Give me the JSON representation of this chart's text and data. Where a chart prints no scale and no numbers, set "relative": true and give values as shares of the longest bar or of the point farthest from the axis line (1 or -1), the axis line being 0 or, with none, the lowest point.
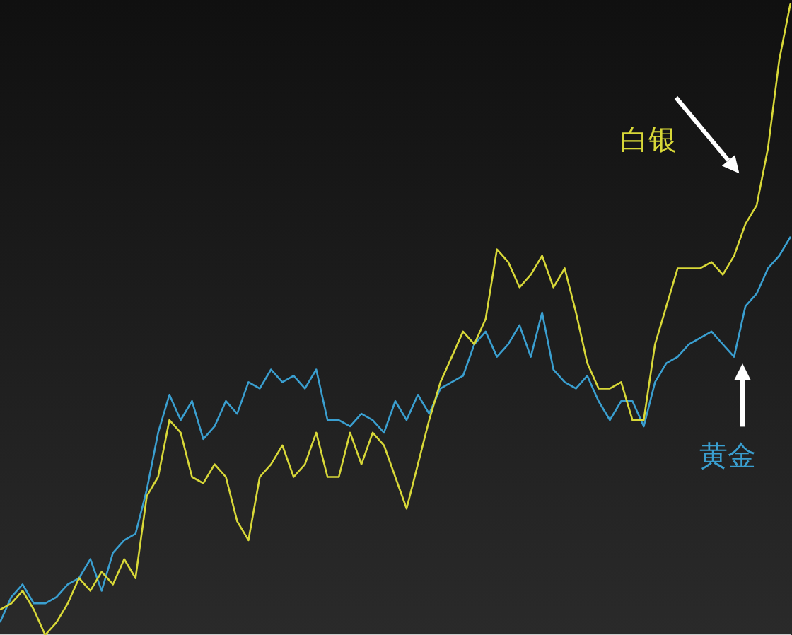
{
  "chart_data": {
    "type": "line",
    "relative": true,
    "legend": false,
    "marker": "none",
    "categories": [
      null,
      null,
      null,
      null,
      null,
      null,
      null,
      null,
      null,
      null,
      null,
      null,
      null,
      null,
      null,
      null,
      null,
      null,
      null,
      null,
      null,
      null,
      null,
      null,
      null,
      null,
      null,
      null,
      null,
      null,
      null,
      null,
      null,
      null,
      null,
      null,
      null,
      null,
      null,
      null,
      null,
      null,
      null,
      null,
      null,
      null,
      null,
      null,
      null,
      null,
      null,
      null,
      null,
      null,
      null,
      null,
      null,
      null,
      null,
      null,
      null,
      null,
      null,
      null,
      null,
      null,
      null,
      null,
      null,
      null,
      null
    ],
    "series": [
      {
        "name": "白银",
        "color": "#d8d838",
        "values": [
          0.04,
          0.05,
          0.07,
          0.04,
          0,
          0.02,
          0.05,
          0.09,
          0.07,
          0.1,
          0.08,
          0.12,
          0.09,
          0.22,
          0.25,
          0.34,
          0.32,
          0.25,
          0.24,
          0.27,
          0.25,
          0.18,
          0.15,
          0.25,
          0.27,
          0.3,
          0.25,
          0.27,
          0.32,
          0.25,
          0.25,
          0.32,
          0.27,
          0.32,
          0.3,
          0.25,
          0.2,
          0.27,
          0.34,
          0.4,
          0.44,
          0.48,
          0.46,
          0.5,
          0.61,
          0.59,
          0.55,
          0.57,
          0.6,
          0.55,
          0.58,
          0.51,
          0.43,
          0.39,
          0.39,
          0.4,
          0.34,
          0.34,
          0.46,
          0.52,
          0.58,
          0.58,
          0.58,
          0.59,
          0.57,
          0.6,
          0.65,
          0.68,
          0.77,
          0.91,
          1
        ]
      },
      {
        "name": "黄金",
        "color": "#3a9fd0",
        "values": [
          0.02,
          0.06,
          0.08,
          0.05,
          0.05,
          0.06,
          0.08,
          0.09,
          0.12,
          0.07,
          0.13,
          0.15,
          0.16,
          0.23,
          0.32,
          0.38,
          0.34,
          0.37,
          0.31,
          0.33,
          0.37,
          0.35,
          0.4,
          0.39,
          0.42,
          0.4,
          0.41,
          0.39,
          0.42,
          0.34,
          0.34,
          0.33,
          0.35,
          0.34,
          0.32,
          0.37,
          0.34,
          0.38,
          0.35,
          0.39,
          0.4,
          0.41,
          0.46,
          0.48,
          0.44,
          0.46,
          0.49,
          0.44,
          0.51,
          0.42,
          0.4,
          0.39,
          0.41,
          0.37,
          0.34,
          0.37,
          0.37,
          0.33,
          0.4,
          0.43,
          0.44,
          0.46,
          0.47,
          0.48,
          0.46,
          0.44,
          0.52,
          0.54,
          0.58,
          0.6,
          0.63
        ]
      }
    ]
  }
}
